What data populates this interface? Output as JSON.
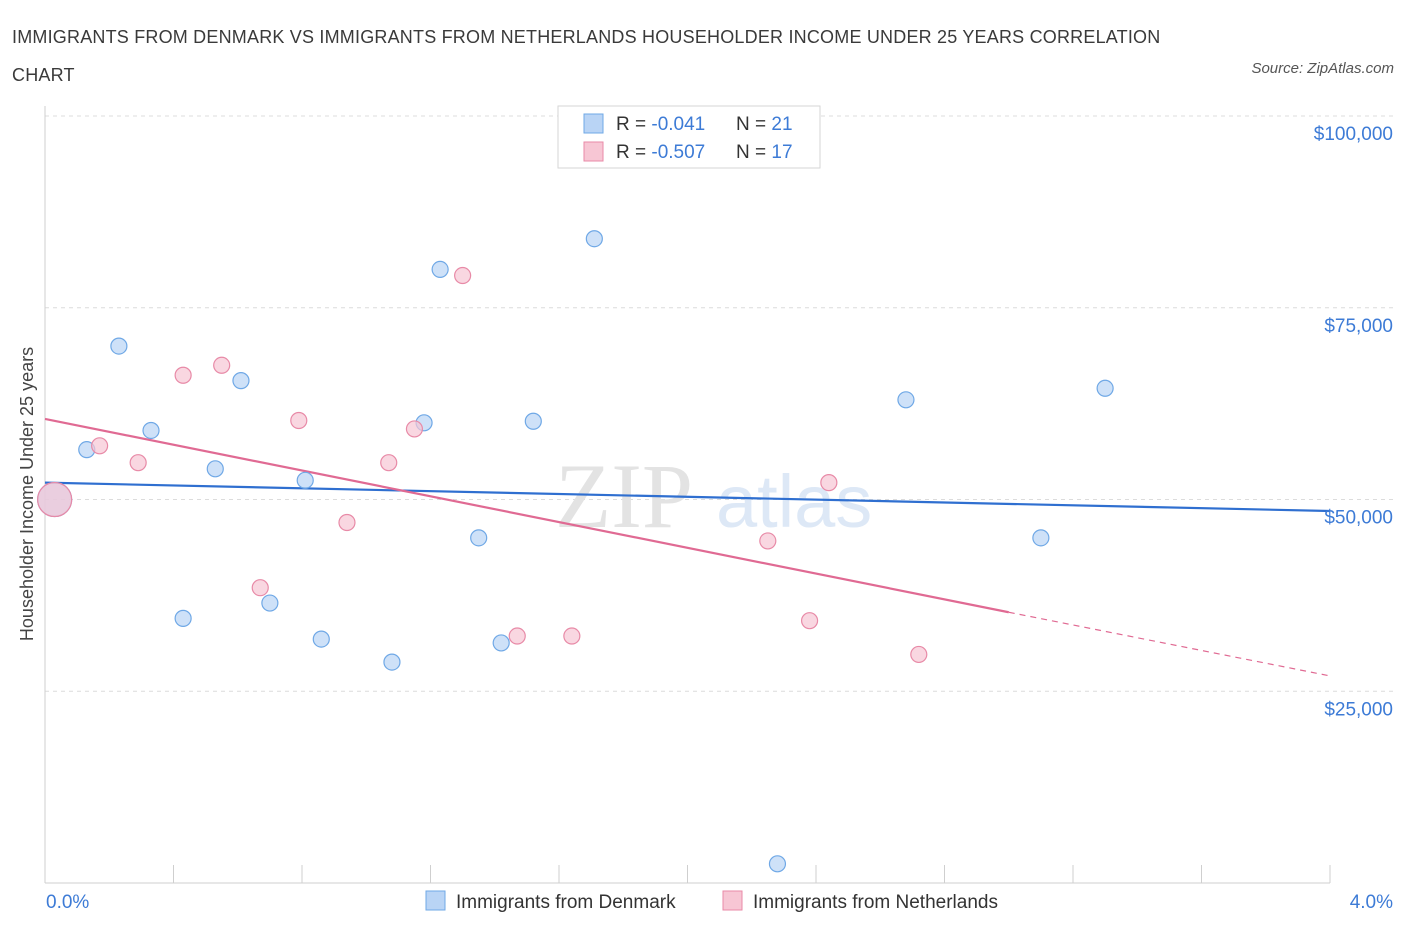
{
  "title": "IMMIGRANTS FROM DENMARK VS IMMIGRANTS FROM NETHERLANDS HOUSEHOLDER INCOME UNDER 25 YEARS CORRELATION CHART",
  "source": "Source: ZipAtlas.com",
  "watermark": {
    "zip": "ZIP",
    "atlas": "atlas"
  },
  "colors": {
    "blue": "#6fa8e6",
    "blue_fill": "#b9d4f5",
    "blue_line": "#2f6fd0",
    "pink": "#e88aa7",
    "pink_fill": "#f7c6d4",
    "pink_line": "#e06a93",
    "axis_label": "#3d7bd6"
  },
  "stats": [
    {
      "r_label": "R = ",
      "r": "-0.041",
      "n_label": "N = ",
      "n": "21"
    },
    {
      "r_label": "R = ",
      "r": "-0.507",
      "n_label": "N = ",
      "n": "17"
    }
  ],
  "chart_data": {
    "type": "scatter",
    "xlabel": "",
    "ylabel": "Householder Income Under 25 years",
    "xlim": [
      0,
      4.0
    ],
    "ylim": [
      0,
      100000
    ],
    "x_tick_labels": [
      "0.0%",
      "4.0%"
    ],
    "y_ticks": [
      25000,
      50000,
      75000,
      100000
    ],
    "y_tick_labels": [
      "$25,000",
      "$50,000",
      "$75,000",
      "$100,000"
    ],
    "grid": true,
    "legend_position": "bottom",
    "series": [
      {
        "name": "Immigrants from Denmark",
        "points": [
          {
            "x": 0.03,
            "y": 50000,
            "big": true
          },
          {
            "x": 0.13,
            "y": 56500
          },
          {
            "x": 0.23,
            "y": 70000
          },
          {
            "x": 0.33,
            "y": 59000
          },
          {
            "x": 0.43,
            "y": 34500
          },
          {
            "x": 0.53,
            "y": 54000
          },
          {
            "x": 0.61,
            "y": 65500
          },
          {
            "x": 0.7,
            "y": 36500
          },
          {
            "x": 0.81,
            "y": 52500
          },
          {
            "x": 0.86,
            "y": 31800
          },
          {
            "x": 1.08,
            "y": 28800
          },
          {
            "x": 1.18,
            "y": 60000
          },
          {
            "x": 1.23,
            "y": 80000
          },
          {
            "x": 1.35,
            "y": 45000
          },
          {
            "x": 1.42,
            "y": 31300
          },
          {
            "x": 1.52,
            "y": 60200
          },
          {
            "x": 1.71,
            "y": 84000
          },
          {
            "x": 2.28,
            "y": 2500
          },
          {
            "x": 2.68,
            "y": 63000
          },
          {
            "x": 3.1,
            "y": 45000
          },
          {
            "x": 3.3,
            "y": 64500
          }
        ],
        "trend": {
          "x0": 0.0,
          "y0": 52200,
          "x1": 4.0,
          "y1": 48500
        }
      },
      {
        "name": "Immigrants from Netherlands",
        "points": [
          {
            "x": 0.03,
            "y": 50000,
            "big": true
          },
          {
            "x": 0.17,
            "y": 57000
          },
          {
            "x": 0.29,
            "y": 54800
          },
          {
            "x": 0.43,
            "y": 66200
          },
          {
            "x": 0.55,
            "y": 67500
          },
          {
            "x": 0.67,
            "y": 38500
          },
          {
            "x": 0.79,
            "y": 60300
          },
          {
            "x": 0.94,
            "y": 47000
          },
          {
            "x": 1.07,
            "y": 54800
          },
          {
            "x": 1.15,
            "y": 59200
          },
          {
            "x": 1.3,
            "y": 79200
          },
          {
            "x": 1.47,
            "y": 32200
          },
          {
            "x": 1.64,
            "y": 32200
          },
          {
            "x": 2.25,
            "y": 44600
          },
          {
            "x": 2.38,
            "y": 34200
          },
          {
            "x": 2.44,
            "y": 52200
          },
          {
            "x": 2.72,
            "y": 29800
          }
        ],
        "trend": {
          "x0": 0.0,
          "y0": 60500,
          "x1": 3.0,
          "y1": 35300
        },
        "trend_dashed": {
          "x0": 3.0,
          "y0": 35300,
          "x1": 4.0,
          "y1": 27000
        }
      }
    ]
  }
}
